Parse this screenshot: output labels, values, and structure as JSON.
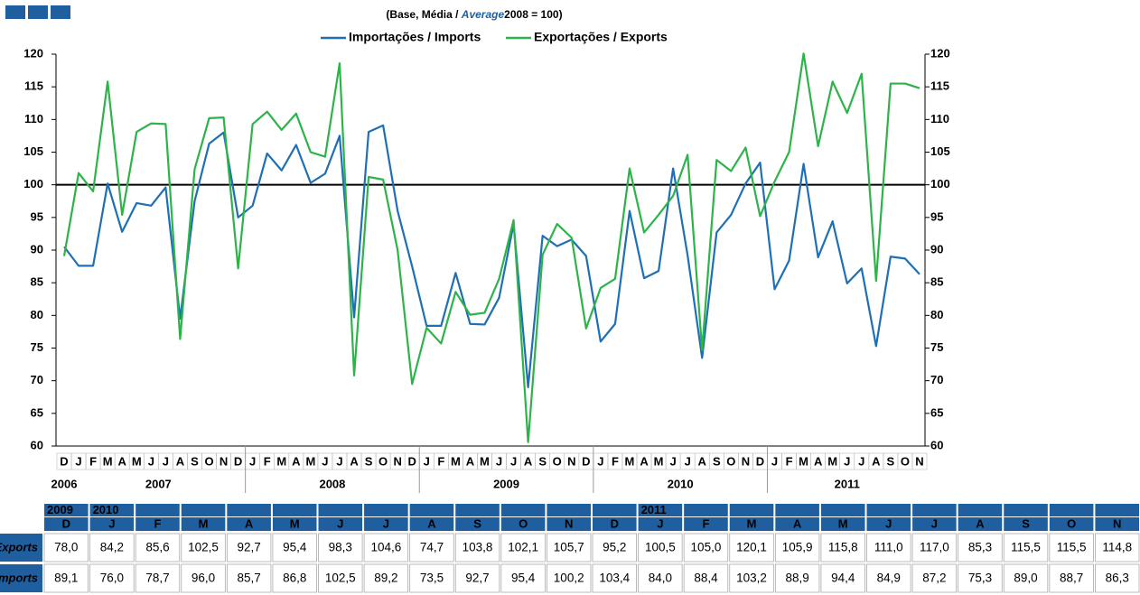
{
  "chart_data": {
    "type": "line",
    "title_parts": [
      "(Base, Média / ",
      "Average",
      "2008 = 100)"
    ],
    "categories": [
      "D",
      "J",
      "F",
      "M",
      "A",
      "M",
      "J",
      "J",
      "A",
      "S",
      "O",
      "N",
      "D",
      "J",
      "F",
      "M",
      "A",
      "M",
      "J",
      "J",
      "A",
      "S",
      "O",
      "N",
      "D",
      "J",
      "F",
      "M",
      "A",
      "M",
      "J",
      "J",
      "A",
      "S",
      "O",
      "N",
      "D",
      "J",
      "F",
      "M",
      "A",
      "M",
      "J",
      "J",
      "A",
      "S",
      "O",
      "N",
      "D",
      "J",
      "F",
      "M",
      "A",
      "M",
      "J",
      "J",
      "A",
      "S",
      "O",
      "N"
    ],
    "x_groups": [
      {
        "label": "2006",
        "count": 1
      },
      {
        "label": "2007",
        "count": 12
      },
      {
        "label": "2008",
        "count": 12
      },
      {
        "label": "2009",
        "count": 12
      },
      {
        "label": "2010",
        "count": 12
      },
      {
        "label": "2011",
        "count": 11
      }
    ],
    "series": [
      {
        "name": "Importações / Imports",
        "color": "#1f6fb5",
        "values": [
          90.5,
          87.6,
          87.6,
          100.2,
          92.8,
          97.2,
          96.8,
          99.6,
          79.5,
          97.5,
          106.3,
          108.0,
          95.0,
          96.8,
          104.8,
          102.2,
          106.1,
          100.3,
          101.7,
          107.5,
          79.7,
          108.1,
          109.1,
          96.0,
          87.5,
          78.4,
          78.4,
          86.5,
          78.7,
          78.6,
          82.7,
          94.0,
          69.0,
          92.2,
          90.6,
          91.6,
          89.1,
          76.0,
          78.7,
          96.0,
          85.7,
          86.8,
          102.5,
          89.2,
          73.5,
          92.7,
          95.4,
          100.2,
          103.4,
          84.0,
          88.4,
          103.2,
          88.9,
          94.4,
          84.9,
          87.2,
          75.3,
          89.0,
          88.7,
          86.3
        ]
      },
      {
        "name": "Exportações / Exports",
        "color": "#2db34a",
        "values": [
          89.1,
          101.8,
          99.0,
          115.8,
          95.4,
          108.1,
          109.4,
          109.3,
          76.4,
          102.4,
          110.2,
          110.3,
          87.2,
          109.3,
          111.2,
          108.4,
          110.9,
          105.0,
          104.3,
          118.6,
          70.8,
          101.2,
          100.8,
          90.0,
          69.5,
          78.1,
          75.7,
          83.6,
          80.1,
          80.4,
          85.6,
          94.6,
          60.6,
          89.3,
          94.0,
          91.9,
          78.0,
          84.2,
          85.6,
          102.5,
          92.7,
          95.4,
          98.3,
          104.6,
          74.7,
          103.8,
          102.1,
          105.7,
          95.2,
          100.5,
          105.0,
          120.1,
          105.9,
          115.8,
          111.0,
          117.0,
          85.3,
          115.5,
          115.5,
          114.8
        ]
      }
    ],
    "reference_line": 100,
    "ylim": [
      60,
      120
    ],
    "yticks": [
      60,
      65,
      70,
      75,
      80,
      85,
      90,
      95,
      100,
      105,
      110,
      115,
      120
    ],
    "y2lim": [
      60,
      120
    ],
    "y2ticks": [
      60,
      65,
      70,
      75,
      80,
      85,
      90,
      95,
      100,
      105,
      110,
      115,
      120
    ]
  },
  "table": {
    "columns": [
      {
        "year": "2009",
        "month": "D"
      },
      {
        "year": "2010",
        "month": "J"
      },
      {
        "month": "F"
      },
      {
        "month": "M"
      },
      {
        "month": "A"
      },
      {
        "month": "M"
      },
      {
        "month": "J"
      },
      {
        "month": "J"
      },
      {
        "month": "A"
      },
      {
        "month": "S"
      },
      {
        "month": "O"
      },
      {
        "month": "N"
      },
      {
        "month": "D"
      },
      {
        "year": "2011",
        "month": "J"
      },
      {
        "month": "F"
      },
      {
        "month": "M"
      },
      {
        "month": "A"
      },
      {
        "month": "M"
      },
      {
        "month": "J"
      },
      {
        "month": "J"
      },
      {
        "month": "A"
      },
      {
        "month": "S"
      },
      {
        "month": "O"
      },
      {
        "month": "N"
      }
    ],
    "rows": [
      {
        "label": "Exports",
        "cells": [
          "78,0",
          "84,2",
          "85,6",
          "102,5",
          "92,7",
          "95,4",
          "98,3",
          "104,6",
          "74,7",
          "103,8",
          "102,1",
          "105,7",
          "95,2",
          "100,5",
          "105,0",
          "120,1",
          "105,9",
          "115,8",
          "111,0",
          "117,0",
          "85,3",
          "115,5",
          "115,5",
          "114,8"
        ]
      },
      {
        "label": "Imports",
        "cells": [
          "89,1",
          "76,0",
          "78,7",
          "96,0",
          "85,7",
          "86,8",
          "102,5",
          "89,2",
          "73,5",
          "92,7",
          "95,4",
          "100,2",
          "103,4",
          "84,0",
          "88,4",
          "103,2",
          "88,9",
          "94,4",
          "84,9",
          "87,2",
          "75,3",
          "89,0",
          "88,7",
          "86,3"
        ]
      }
    ]
  }
}
